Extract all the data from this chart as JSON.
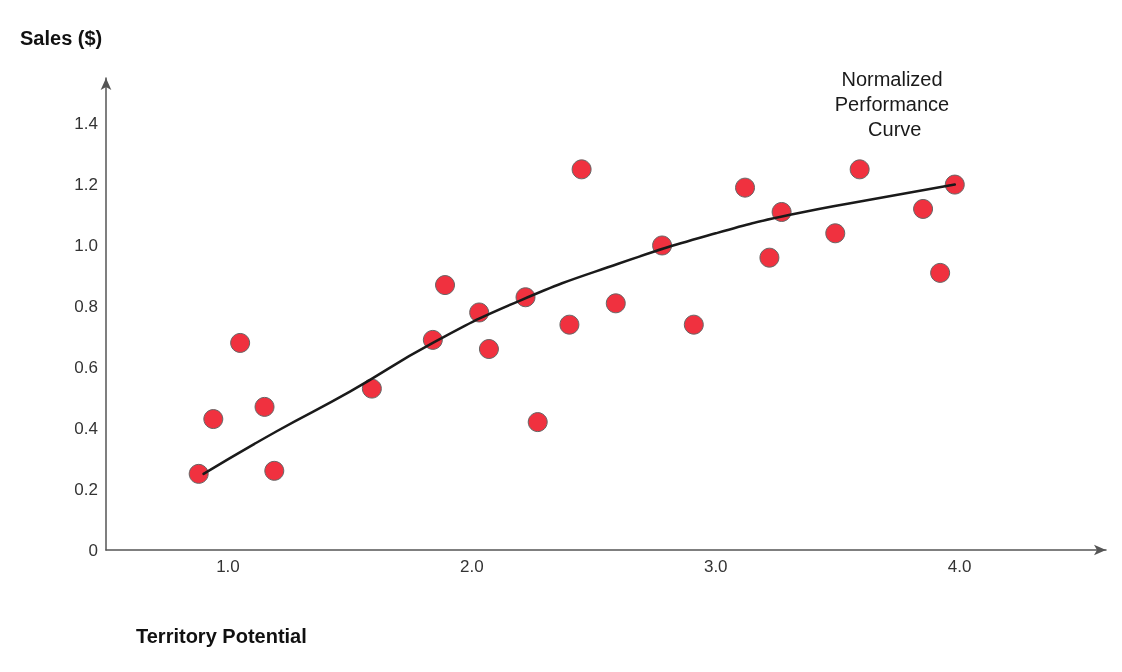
{
  "chart_data": {
    "type": "scatter",
    "xlabel": "Territory Potential",
    "ylabel": "Sales ($)",
    "xlim": [
      0.5,
      4.6
    ],
    "ylim": [
      0,
      1.55
    ],
    "xticks": [
      {
        "value": 1,
        "label": "1.0"
      },
      {
        "value": 2,
        "label": "2.0"
      },
      {
        "value": 3,
        "label": "3.0"
      },
      {
        "value": 4,
        "label": "4.0"
      }
    ],
    "yticks": [
      0,
      0.2,
      0.4,
      0.6,
      0.8,
      {
        "value": 1,
        "label": "1.0"
      },
      1.2,
      1.4
    ],
    "grid": false,
    "legend": false,
    "marker": "circle",
    "series": [
      {
        "type": "scatter",
        "color": "#f0313f",
        "x": [
          0.88,
          0.94,
          1.05,
          1.15,
          1.19,
          1.59,
          1.84,
          1.89,
          2.03,
          2.07,
          2.22,
          2.27,
          2.4,
          2.45,
          2.59,
          2.78,
          2.91,
          3.12,
          3.22,
          3.27,
          3.49,
          3.59,
          3.85,
          3.92,
          3.98
        ],
        "values": [
          0.25,
          0.43,
          0.68,
          0.47,
          0.26,
          0.53,
          0.69,
          0.87,
          0.78,
          0.66,
          0.83,
          0.42,
          0.74,
          1.25,
          0.81,
          1.0,
          0.74,
          1.19,
          0.96,
          1.11,
          1.04,
          1.25,
          1.12,
          0.91,
          1.2
        ]
      },
      {
        "type": "line",
        "name": "Normalized Performance Curve",
        "color": "#1a1a1a",
        "marker": "none",
        "line_style": "solid",
        "x": [
          0.9,
          1.2,
          1.5,
          1.84,
          2.2,
          2.6,
          3.0,
          3.3,
          3.7,
          3.98
        ],
        "values": [
          0.25,
          0.39,
          0.52,
          0.68,
          0.82,
          0.94,
          1.04,
          1.1,
          1.16,
          1.2
        ]
      }
    ]
  }
}
